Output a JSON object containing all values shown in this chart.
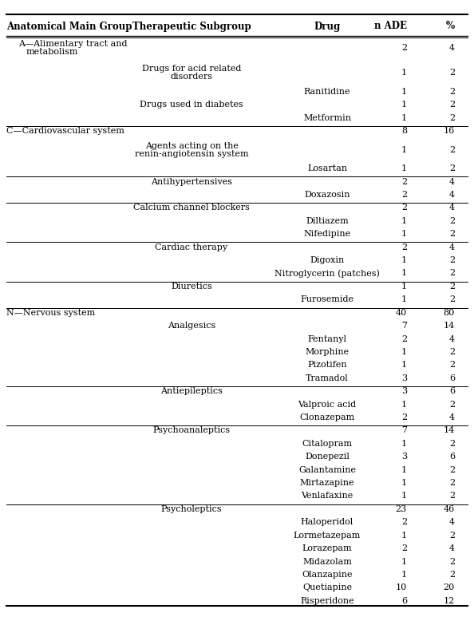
{
  "headers": [
    "Anatomical Main Group",
    "Therapeutic Subgroup",
    "Drug",
    "n ADE",
    "%"
  ],
  "rows": [
    {
      "col0": "A—Alimentary tract and\nmetabolism",
      "col1": "",
      "col2": "",
      "n": "2",
      "pct": "4",
      "sep_before": true,
      "multiline_col": 0
    },
    {
      "col0": "",
      "col1": "Drugs for acid related\ndisorders",
      "col2": "",
      "n": "1",
      "pct": "2",
      "sep_before": false,
      "multiline_col": 1
    },
    {
      "col0": "",
      "col1": "",
      "col2": "Ranitidine",
      "n": "1",
      "pct": "2",
      "sep_before": false,
      "multiline_col": -1
    },
    {
      "col0": "",
      "col1": "Drugs used in diabetes",
      "col2": "",
      "n": "1",
      "pct": "2",
      "sep_before": false,
      "multiline_col": -1
    },
    {
      "col0": "",
      "col1": "",
      "col2": "Metformin",
      "n": "1",
      "pct": "2",
      "sep_before": false,
      "multiline_col": -1
    },
    {
      "col0": "C—Cardiovascular system",
      "col1": "",
      "col2": "",
      "n": "8",
      "pct": "16",
      "sep_before": true,
      "multiline_col": -1
    },
    {
      "col0": "",
      "col1": "Agents acting on the\nrenin-angiotensin system",
      "col2": "",
      "n": "1",
      "pct": "2",
      "sep_before": false,
      "multiline_col": 1
    },
    {
      "col0": "",
      "col1": "",
      "col2": "Losartan",
      "n": "1",
      "pct": "2",
      "sep_before": false,
      "multiline_col": -1
    },
    {
      "col0": "",
      "col1": "Antihypertensives",
      "col2": "",
      "n": "2",
      "pct": "4",
      "sep_before": true,
      "multiline_col": -1
    },
    {
      "col0": "",
      "col1": "",
      "col2": "Doxazosin",
      "n": "2",
      "pct": "4",
      "sep_before": false,
      "multiline_col": -1
    },
    {
      "col0": "",
      "col1": "Calcium channel blockers",
      "col2": "",
      "n": "2",
      "pct": "4",
      "sep_before": true,
      "multiline_col": -1
    },
    {
      "col0": "",
      "col1": "",
      "col2": "Diltiazem",
      "n": "1",
      "pct": "2",
      "sep_before": false,
      "multiline_col": -1
    },
    {
      "col0": "",
      "col1": "",
      "col2": "Nifedipine",
      "n": "1",
      "pct": "2",
      "sep_before": false,
      "multiline_col": -1
    },
    {
      "col0": "",
      "col1": "Cardiac therapy",
      "col2": "",
      "n": "2",
      "pct": "4",
      "sep_before": true,
      "multiline_col": -1
    },
    {
      "col0": "",
      "col1": "",
      "col2": "Digoxin",
      "n": "1",
      "pct": "2",
      "sep_before": false,
      "multiline_col": -1
    },
    {
      "col0": "",
      "col1": "",
      "col2": "Nitroglycerin (patches)",
      "n": "1",
      "pct": "2",
      "sep_before": false,
      "multiline_col": -1
    },
    {
      "col0": "",
      "col1": "Diuretics",
      "col2": "",
      "n": "1",
      "pct": "2",
      "sep_before": true,
      "multiline_col": -1
    },
    {
      "col0": "",
      "col1": "",
      "col2": "Furosemide",
      "n": "1",
      "pct": "2",
      "sep_before": false,
      "multiline_col": -1
    },
    {
      "col0": "N—Nervous system",
      "col1": "",
      "col2": "",
      "n": "40",
      "pct": "80",
      "sep_before": true,
      "multiline_col": -1
    },
    {
      "col0": "",
      "col1": "Analgesics",
      "col2": "",
      "n": "7",
      "pct": "14",
      "sep_before": false,
      "multiline_col": -1
    },
    {
      "col0": "",
      "col1": "",
      "col2": "Fentanyl",
      "n": "2",
      "pct": "4",
      "sep_before": false,
      "multiline_col": -1
    },
    {
      "col0": "",
      "col1": "",
      "col2": "Morphine",
      "n": "1",
      "pct": "2",
      "sep_before": false,
      "multiline_col": -1
    },
    {
      "col0": "",
      "col1": "",
      "col2": "Pizotifen",
      "n": "1",
      "pct": "2",
      "sep_before": false,
      "multiline_col": -1
    },
    {
      "col0": "",
      "col1": "",
      "col2": "Tramadol",
      "n": "3",
      "pct": "6",
      "sep_before": false,
      "multiline_col": -1
    },
    {
      "col0": "",
      "col1": "Antiepileptics",
      "col2": "",
      "n": "3",
      "pct": "6",
      "sep_before": true,
      "multiline_col": -1
    },
    {
      "col0": "",
      "col1": "",
      "col2": "Valproic acid",
      "n": "1",
      "pct": "2",
      "sep_before": false,
      "multiline_col": -1
    },
    {
      "col0": "",
      "col1": "",
      "col2": "Clonazepam",
      "n": "2",
      "pct": "4",
      "sep_before": false,
      "multiline_col": -1
    },
    {
      "col0": "",
      "col1": "Psychoanaleptics",
      "col2": "",
      "n": "7",
      "pct": "14",
      "sep_before": true,
      "multiline_col": -1
    },
    {
      "col0": "",
      "col1": "",
      "col2": "Citalopram",
      "n": "1",
      "pct": "2",
      "sep_before": false,
      "multiline_col": -1
    },
    {
      "col0": "",
      "col1": "",
      "col2": "Donepezil",
      "n": "3",
      "pct": "6",
      "sep_before": false,
      "multiline_col": -1
    },
    {
      "col0": "",
      "col1": "",
      "col2": "Galantamine",
      "n": "1",
      "pct": "2",
      "sep_before": false,
      "multiline_col": -1
    },
    {
      "col0": "",
      "col1": "",
      "col2": "Mirtazapine",
      "n": "1",
      "pct": "2",
      "sep_before": false,
      "multiline_col": -1
    },
    {
      "col0": "",
      "col1": "",
      "col2": "Venlafaxine",
      "n": "1",
      "pct": "2",
      "sep_before": false,
      "multiline_col": -1
    },
    {
      "col0": "",
      "col1": "Psycholeptics",
      "col2": "",
      "n": "23",
      "pct": "46",
      "sep_before": true,
      "multiline_col": -1
    },
    {
      "col0": "",
      "col1": "",
      "col2": "Haloperidol",
      "n": "2",
      "pct": "4",
      "sep_before": false,
      "multiline_col": -1
    },
    {
      "col0": "",
      "col1": "",
      "col2": "Lormetazepam",
      "n": "1",
      "pct": "2",
      "sep_before": false,
      "multiline_col": -1
    },
    {
      "col0": "",
      "col1": "",
      "col2": "Lorazepam",
      "n": "2",
      "pct": "4",
      "sep_before": false,
      "multiline_col": -1
    },
    {
      "col0": "",
      "col1": "",
      "col2": "Midazolam",
      "n": "1",
      "pct": "2",
      "sep_before": false,
      "multiline_col": -1
    },
    {
      "col0": "",
      "col1": "",
      "col2": "Olanzapine",
      "n": "1",
      "pct": "2",
      "sep_before": false,
      "multiline_col": -1
    },
    {
      "col0": "",
      "col1": "",
      "col2": "Quetiapine",
      "n": "10",
      "pct": "20",
      "sep_before": false,
      "multiline_col": -1
    },
    {
      "col0": "",
      "col1": "",
      "col2": "Risperidone",
      "n": "6",
      "pct": "12",
      "sep_before": false,
      "multiline_col": -1
    }
  ],
  "font_size": 8.0,
  "header_font_size": 8.5
}
